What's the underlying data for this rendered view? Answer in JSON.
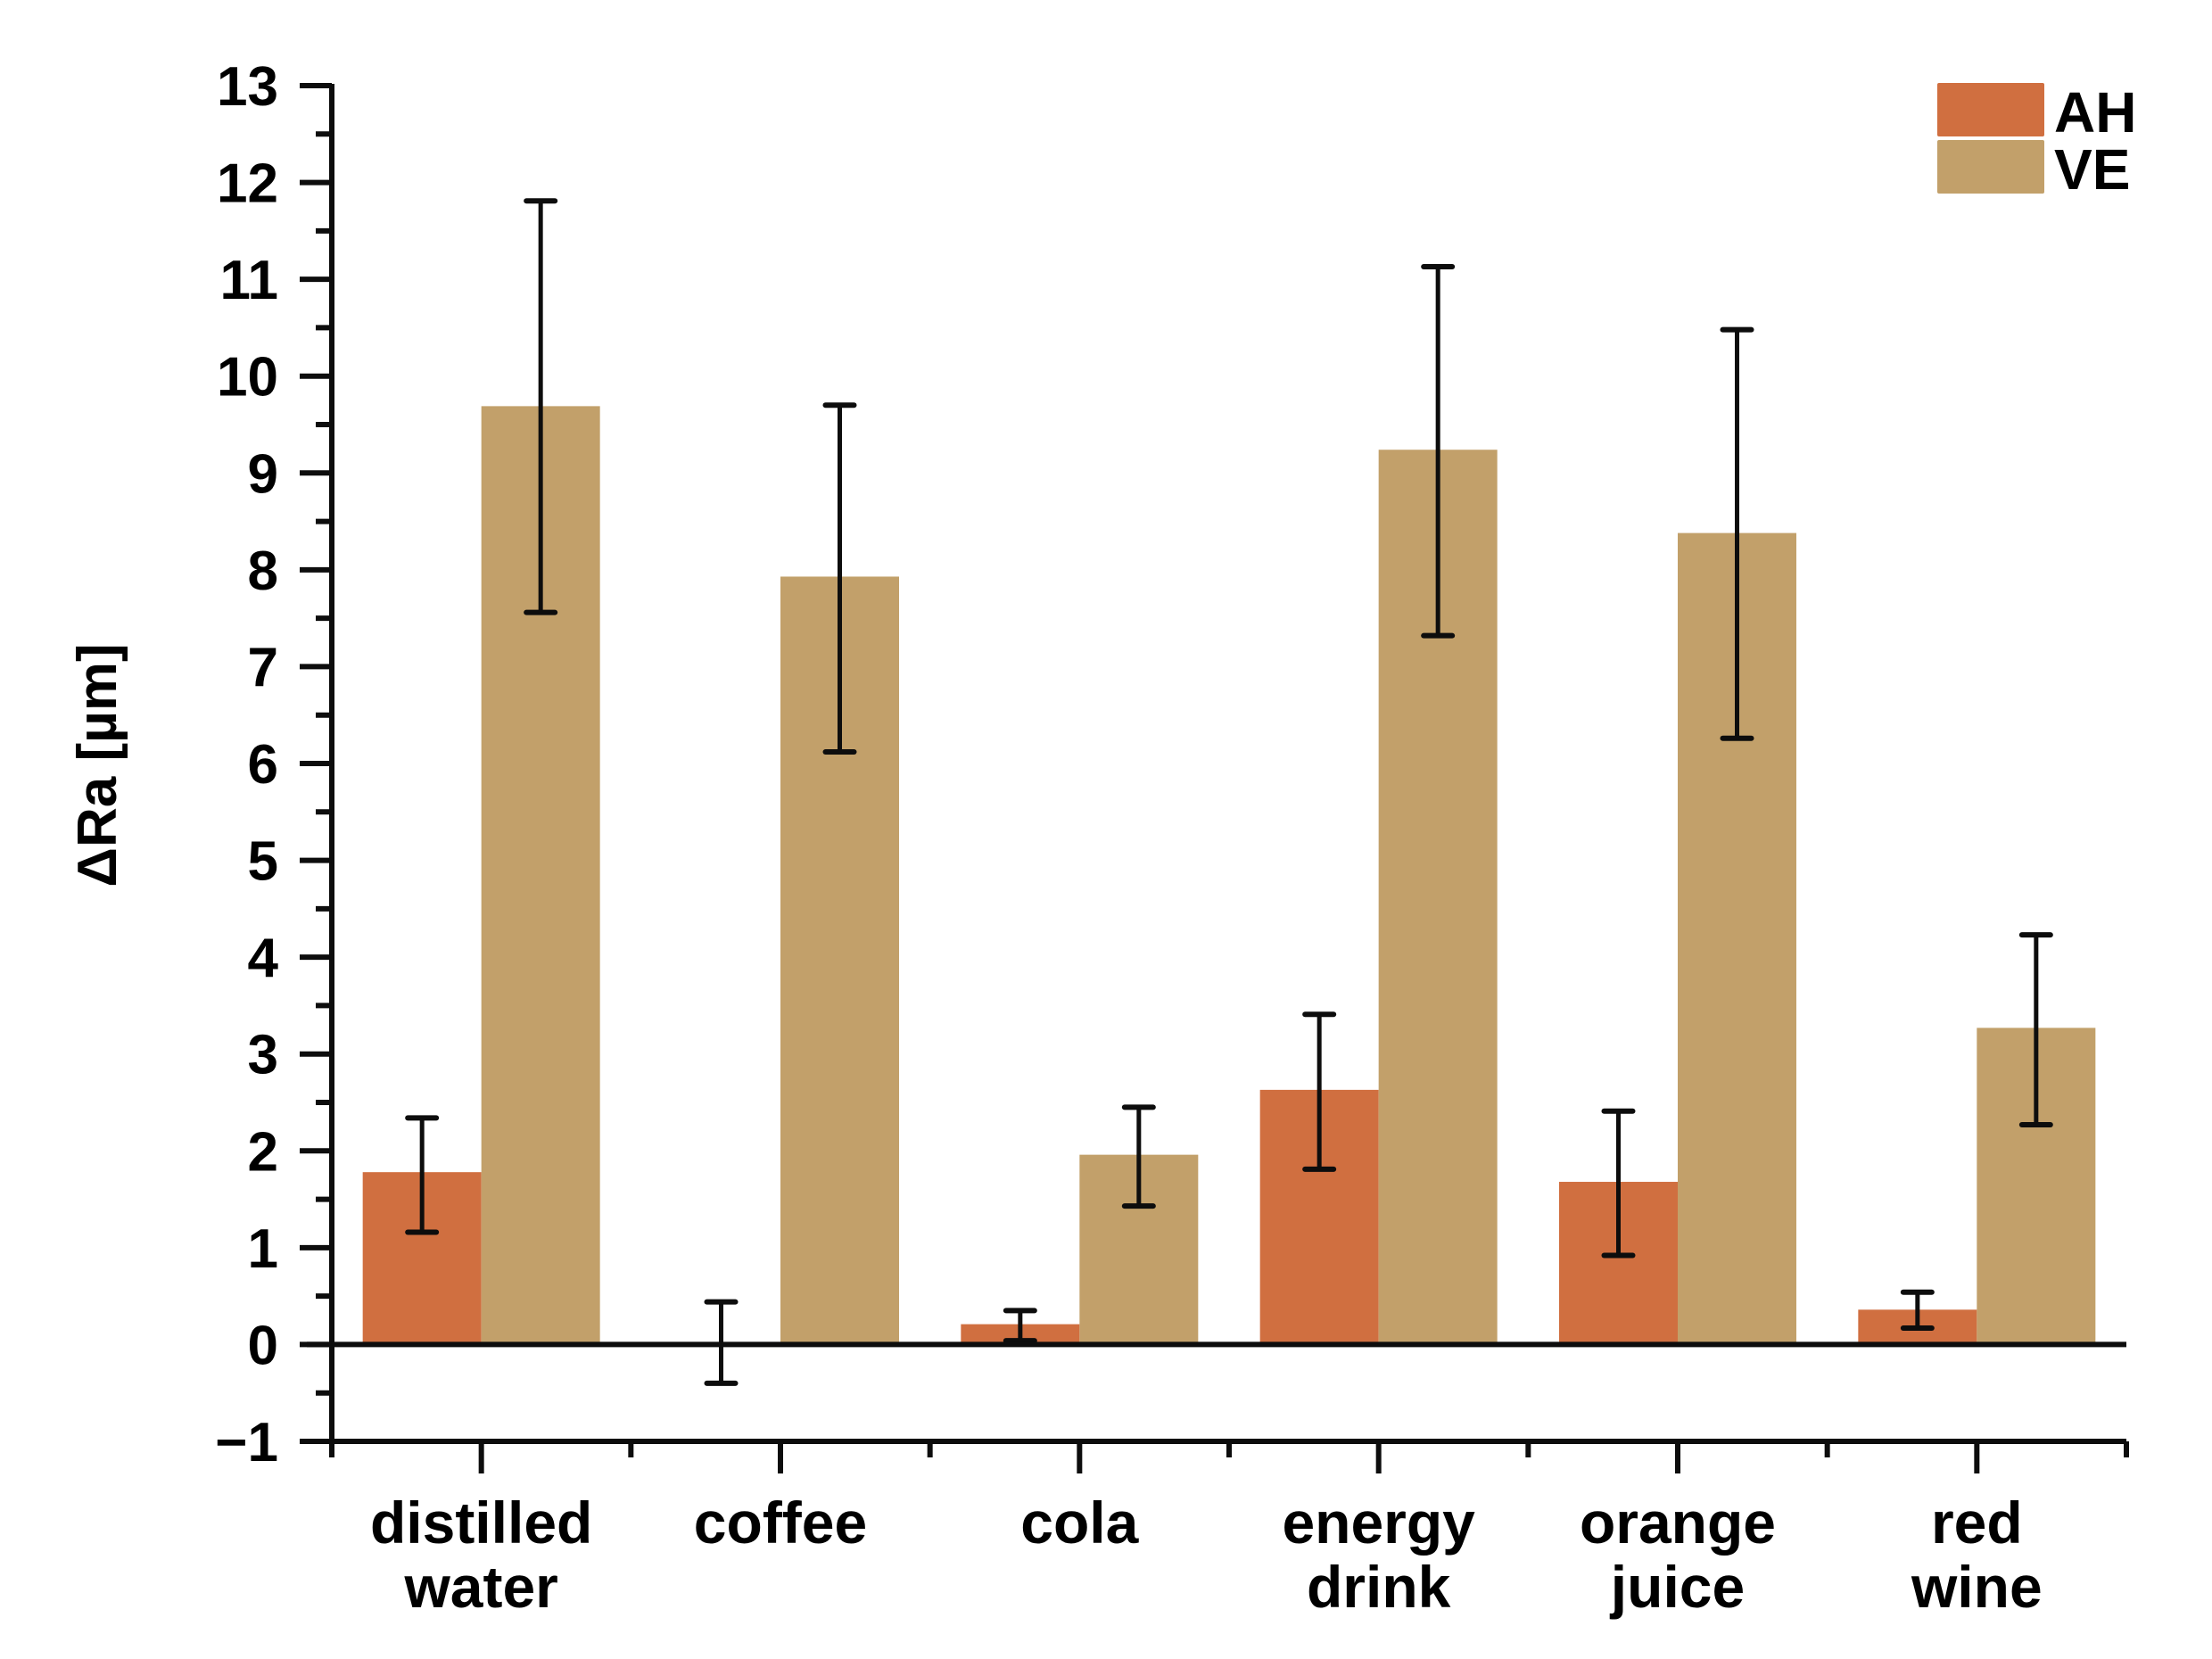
{
  "chart_data": {
    "type": "bar",
    "title": "",
    "xlabel": "",
    "ylabel": "ΔRa [µm]",
    "ylim": [
      -1,
      13
    ],
    "yticks": [
      -1,
      0,
      1,
      2,
      3,
      4,
      5,
      6,
      7,
      8,
      9,
      10,
      11,
      12,
      13
    ],
    "ytick_labels": [
      "−1",
      "0",
      "1",
      "2",
      "3",
      "4",
      "5",
      "6",
      "7",
      "8",
      "9",
      "10",
      "11",
      "12",
      "13"
    ],
    "grid": false,
    "legend_position": "top-right",
    "categories": [
      [
        "distilled",
        "water"
      ],
      [
        "coffee"
      ],
      [
        "cola"
      ],
      [
        "energy",
        "drink"
      ],
      [
        "orange",
        "juice"
      ],
      [
        "red",
        "wine"
      ]
    ],
    "series": [
      {
        "name": "AH",
        "color": "#D06F40",
        "values": [
          1.78,
          0.02,
          0.21,
          2.63,
          1.68,
          0.36
        ],
        "error_low": [
          1.16,
          -0.4,
          0.04,
          1.81,
          0.92,
          0.17
        ],
        "error_high": [
          2.34,
          0.44,
          0.35,
          3.41,
          2.41,
          0.54
        ]
      },
      {
        "name": "VE",
        "color": "#C2A06A",
        "values": [
          9.69,
          7.93,
          1.96,
          9.24,
          8.38,
          3.27
        ],
        "error_low": [
          7.56,
          6.12,
          1.43,
          7.32,
          6.26,
          2.27
        ],
        "error_high": [
          11.81,
          9.7,
          2.45,
          11.13,
          10.48,
          4.23
        ]
      }
    ]
  }
}
